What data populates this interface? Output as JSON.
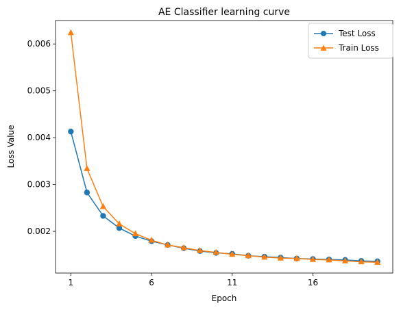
{
  "chart_data": {
    "type": "line",
    "title": "AE Classifier learning curve",
    "xlabel": "Epoch",
    "ylabel": "Loss Value",
    "x": [
      1,
      2,
      3,
      4,
      5,
      6,
      7,
      8,
      9,
      10,
      11,
      12,
      13,
      14,
      15,
      16,
      17,
      18,
      19,
      20
    ],
    "xticks": [
      1,
      6,
      11,
      16
    ],
    "xlim": [
      0.05,
      20.95
    ],
    "yticks": [
      0.002,
      0.003,
      0.004,
      0.005,
      0.006
    ],
    "ytick_labels": [
      "0.002",
      "0.003",
      "0.004",
      "0.005",
      "0.006"
    ],
    "ylim": [
      0.00111,
      0.0065
    ],
    "legend_position": "upper-right",
    "grid": false,
    "series": [
      {
        "name": "Test Loss",
        "color": "#1f77b4",
        "marker": "circle",
        "values": [
          0.00413,
          0.00283,
          0.00233,
          0.00207,
          0.0019,
          0.00179,
          0.00171,
          0.00164,
          0.00158,
          0.00154,
          0.00152,
          0.00148,
          0.00146,
          0.00144,
          0.00142,
          0.00141,
          0.0014,
          0.00139,
          0.00137,
          0.00136
        ]
      },
      {
        "name": "Train Loss",
        "color": "#ff7f0e",
        "marker": "triangle",
        "values": [
          0.00624,
          0.00334,
          0.00253,
          0.00216,
          0.00195,
          0.00181,
          0.00171,
          0.00165,
          0.00159,
          0.00155,
          0.00151,
          0.00148,
          0.00145,
          0.00143,
          0.00142,
          0.0014,
          0.00139,
          0.00137,
          0.00135,
          0.00134
        ]
      }
    ]
  }
}
